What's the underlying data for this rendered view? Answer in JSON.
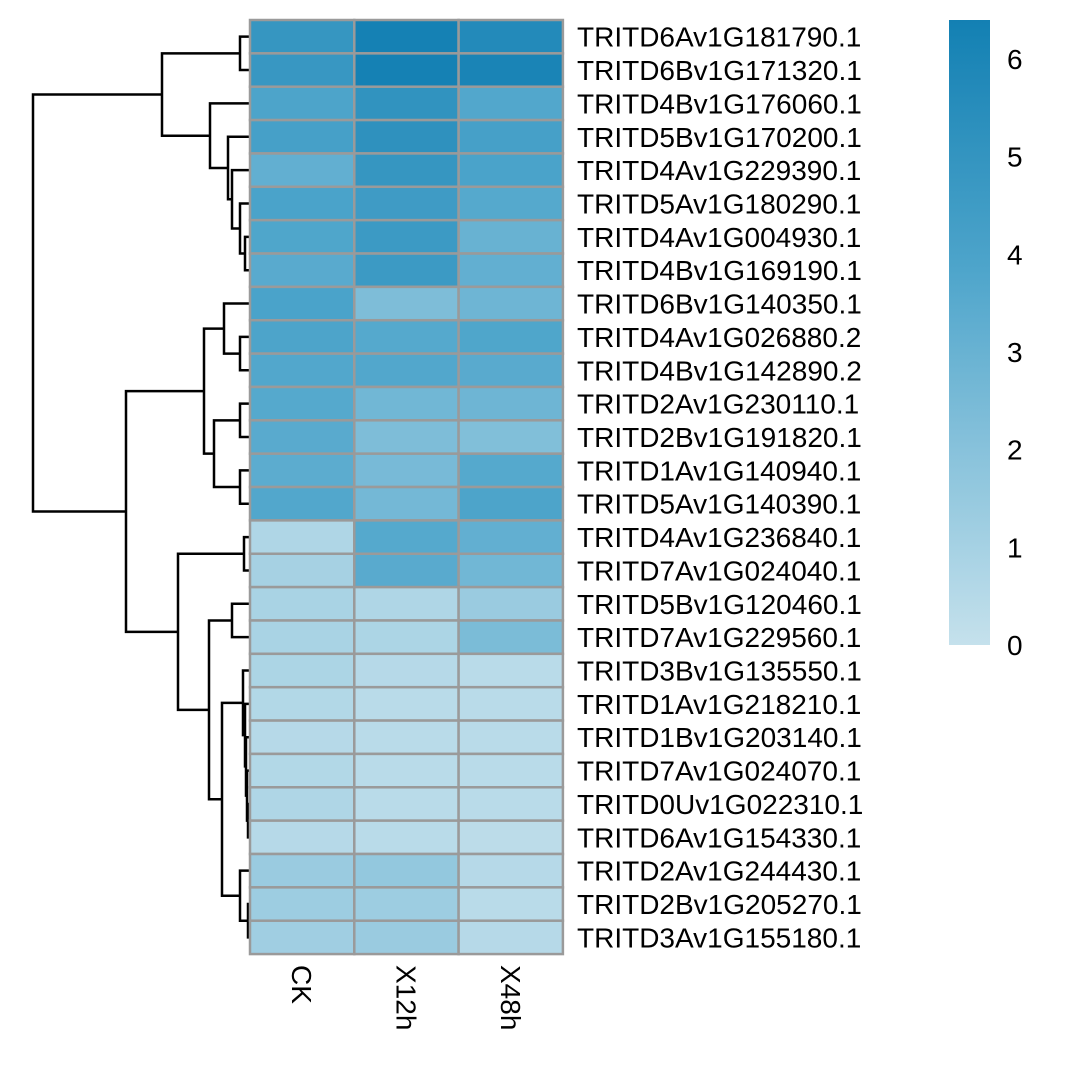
{
  "chart_data": {
    "type": "heatmap",
    "columns": [
      "CK",
      "X12h",
      "X48h"
    ],
    "rows": [
      "TRITD6Av1G181790.1",
      "TRITD6Bv1G171320.1",
      "TRITD4Bv1G176060.1",
      "TRITD5Bv1G170200.1",
      "TRITD4Av1G229390.1",
      "TRITD5Av1G180290.1",
      "TRITD4Av1G004930.1",
      "TRITD4Bv1G169190.1",
      "TRITD6Bv1G140350.1",
      "TRITD4Av1G026880.2",
      "TRITD4Bv1G142890.2",
      "TRITD2Av1G230110.1",
      "TRITD2Bv1G191820.1",
      "TRITD1Av1G140940.1",
      "TRITD5Av1G140390.1",
      "TRITD4Av1G236840.1",
      "TRITD7Av1G024040.1",
      "TRITD5Bv1G120460.1",
      "TRITD7Av1G229560.1",
      "TRITD3Bv1G135550.1",
      "TRITD1Av1G218210.1",
      "TRITD1Bv1G203140.1",
      "TRITD7Av1G024070.1",
      "TRITD0Uv1G022310.1",
      "TRITD6Av1G154330.1",
      "TRITD2Av1G244430.1",
      "TRITD2Bv1G205270.1",
      "TRITD3Av1G155180.1"
    ],
    "values": [
      [
        4.9,
        6.3,
        5.7
      ],
      [
        4.8,
        6.3,
        6.1
      ],
      [
        3.9,
        5.1,
        3.7
      ],
      [
        4.2,
        5.2,
        4.2
      ],
      [
        3.2,
        4.9,
        4.0
      ],
      [
        4.0,
        4.5,
        3.6
      ],
      [
        3.8,
        4.6,
        3.0
      ],
      [
        3.5,
        4.6,
        3.2
      ],
      [
        4.0,
        2.3,
        2.8
      ],
      [
        3.9,
        3.6,
        3.8
      ],
      [
        3.7,
        3.7,
        3.5
      ],
      [
        3.6,
        2.7,
        2.8
      ],
      [
        3.5,
        2.3,
        2.2
      ],
      [
        3.4,
        2.5,
        3.6
      ],
      [
        3.7,
        2.6,
        3.9
      ],
      [
        0.7,
        3.6,
        3.2
      ],
      [
        1.0,
        3.5,
        2.7
      ],
      [
        0.9,
        0.7,
        1.4
      ],
      [
        0.9,
        0.8,
        2.4
      ],
      [
        0.8,
        0.5,
        0.4
      ],
      [
        0.6,
        0.4,
        0.4
      ],
      [
        0.5,
        0.4,
        0.4
      ],
      [
        0.6,
        0.4,
        0.4
      ],
      [
        0.7,
        0.4,
        0.4
      ],
      [
        0.5,
        0.4,
        0.3
      ],
      [
        1.4,
        1.6,
        0.5
      ],
      [
        1.3,
        1.3,
        0.4
      ],
      [
        1.2,
        1.4,
        0.5
      ]
    ],
    "color_scale": {
      "min": 0,
      "max": 6.4,
      "low_color": "#c5e1ec",
      "mid_color": "#4ea5cb",
      "high_color": "#1380b3",
      "ticks": [
        "0",
        "1",
        "2",
        "3",
        "4",
        "5",
        "6"
      ]
    },
    "row_dendrogram": true,
    "cell_border_color": "#9a9a9a",
    "legend_position": "top-right"
  }
}
